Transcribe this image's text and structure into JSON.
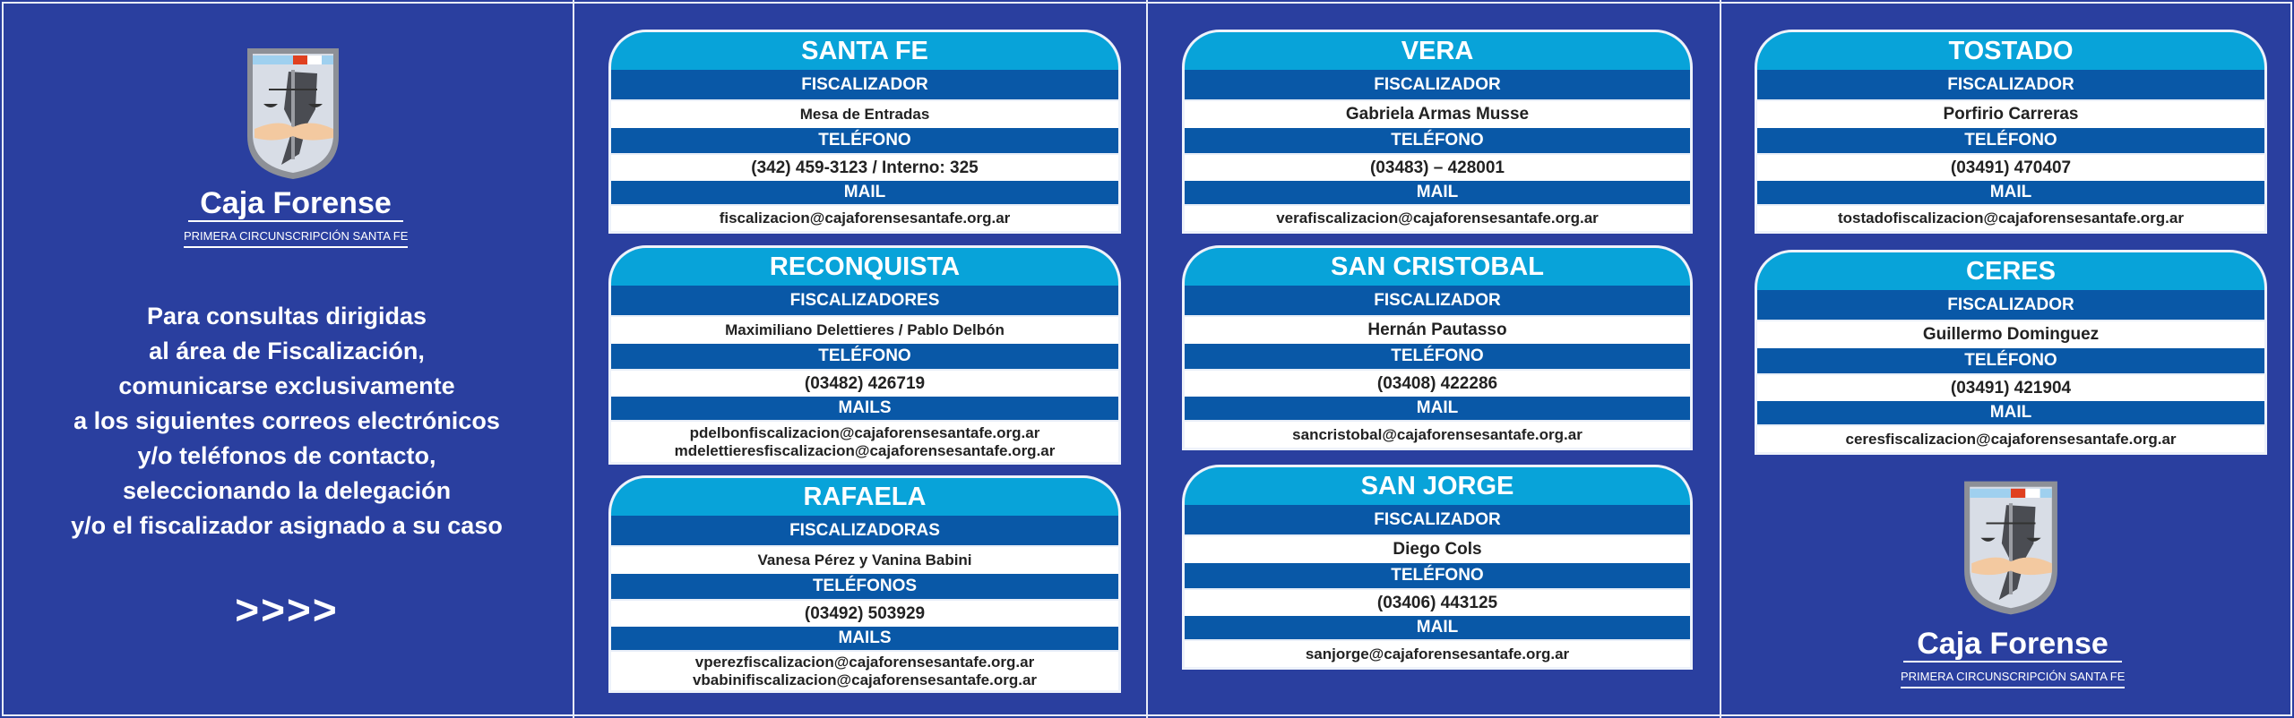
{
  "brand": {
    "name": "Caja Forense",
    "subtitle": "PRIMERA CIRCUNSCRIPCIÓN SANTA FE"
  },
  "intro": {
    "lines": [
      "Para consultas dirigidas",
      "al área de Fiscalización,",
      "comunicarse exclusivamente",
      "a los siguientes correos electrónicos",
      "y/o teléfonos de contacto,",
      "seleccionando la delegación",
      "y/o el fiscalizador asignado a su caso"
    ],
    "arrows": ">>>>"
  },
  "colors": {
    "background": "#2a3f9f",
    "title_bar": "#08a3d9",
    "label_bar": "#0958a7"
  },
  "delegations": [
    {
      "id": "santa-fe",
      "title": "SANTA FE",
      "fiscal_label": "FISCALIZADOR",
      "fiscal": "Mesa de Entradas",
      "phone_label": "TELÉFONO",
      "phone": "(342) 459-3123 / Interno: 325",
      "mail_label": "MAIL",
      "mails": [
        "fiscalizacion@cajaforensesantafe.org.ar"
      ]
    },
    {
      "id": "reconquista",
      "title": "RECONQUISTA",
      "fiscal_label": "FISCALIZADORES",
      "fiscal": "Maximiliano Delettieres / Pablo Delbón",
      "phone_label": "TELÉFONO",
      "phone": "(03482) 426719",
      "mail_label": "MAILS",
      "mails": [
        "pdelbonfiscalizacion@cajaforensesantafe.org.ar",
        "mdelettieresfiscalizacion@cajaforensesantafe.org.ar"
      ]
    },
    {
      "id": "rafaela",
      "title": "RAFAELA",
      "fiscal_label": "FISCALIZADORAS",
      "fiscal": "Vanesa Pérez y Vanina Babini",
      "phone_label": "TELÉFONOS",
      "phone": "(03492) 503929",
      "mail_label": "MAILS",
      "mails": [
        "vperezfiscalizacion@cajaforensesantafe.org.ar",
        "vbabinifiscalizacion@cajaforensesantafe.org.ar"
      ]
    },
    {
      "id": "vera",
      "title": "VERA",
      "fiscal_label": "FISCALIZADOR",
      "fiscal": "Gabriela Armas Musse",
      "phone_label": "TELÉFONO",
      "phone": "(03483) – 428001",
      "mail_label": "MAIL",
      "mails": [
        "verafiscalizacion@cajaforensesantafe.org.ar"
      ]
    },
    {
      "id": "san-cristobal",
      "title": "SAN CRISTOBAL",
      "fiscal_label": "FISCALIZADOR",
      "fiscal": "Hernán Pautasso",
      "phone_label": "TELÉFONO",
      "phone": "(03408) 422286",
      "mail_label": "MAIL",
      "mails": [
        "sancristobal@cajaforensesantafe.org.ar"
      ]
    },
    {
      "id": "san-jorge",
      "title": "SAN JORGE",
      "fiscal_label": "FISCALIZADOR",
      "fiscal": "Diego Cols",
      "phone_label": "TELÉFONO",
      "phone": "(03406) 443125",
      "mail_label": "MAIL",
      "mails": [
        "sanjorge@cajaforensesantafe.org.ar"
      ]
    },
    {
      "id": "tostado",
      "title": "TOSTADO",
      "fiscal_label": "FISCALIZADOR",
      "fiscal": "Porfirio Carreras",
      "phone_label": "TELÉFONO",
      "phone": "(03491) 470407",
      "mail_label": "MAIL",
      "mails": [
        "tostadofiscalizacion@cajaforensesantafe.org.ar"
      ]
    },
    {
      "id": "ceres",
      "title": "CERES",
      "fiscal_label": "FISCALIZADOR",
      "fiscal": "Guillermo Dominguez",
      "phone_label": "TELÉFONO",
      "phone": "(03491) 421904",
      "mail_label": "MAIL",
      "mails": [
        "ceresfiscalizacion@cajaforensesantafe.org.ar"
      ]
    }
  ]
}
